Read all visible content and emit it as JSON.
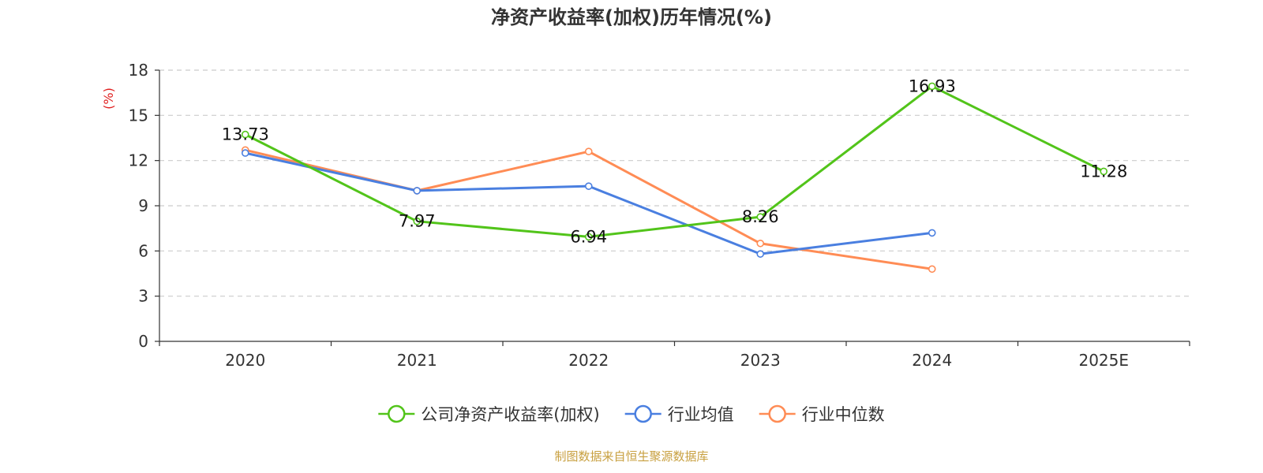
{
  "chart_data": {
    "type": "line",
    "title": "净资产收益率(加权)历年情况(%)",
    "ylabel": "(%)",
    "xlabel": "",
    "categories": [
      "2020",
      "2021",
      "2022",
      "2023",
      "2024",
      "2025E"
    ],
    "ylim": [
      0,
      18
    ],
    "yticks": [
      "0",
      "3",
      "6",
      "9",
      "12",
      "15",
      "18"
    ],
    "grid": true,
    "legend_position": "bottom",
    "series": [
      {
        "name": "公司净资产收益率(加权)",
        "color": "#52c41a",
        "values": [
          13.73,
          7.97,
          6.94,
          8.26,
          16.93,
          11.28
        ],
        "labels": [
          "13.73",
          "7.97",
          "6.94",
          "8.26",
          "16.93",
          "11.28"
        ]
      },
      {
        "name": "行业均值",
        "color": "#4a7fe0",
        "values": [
          12.5,
          10.0,
          10.3,
          5.8,
          7.2,
          null
        ]
      },
      {
        "name": "行业中位数",
        "color": "#ff8c55",
        "values": [
          12.7,
          10.0,
          12.6,
          6.5,
          4.8,
          null
        ]
      }
    ],
    "ylabel_color": "#e02020"
  },
  "source": {
    "text": "制图数据来自恒生聚源数据库",
    "color": "#c8a040"
  }
}
